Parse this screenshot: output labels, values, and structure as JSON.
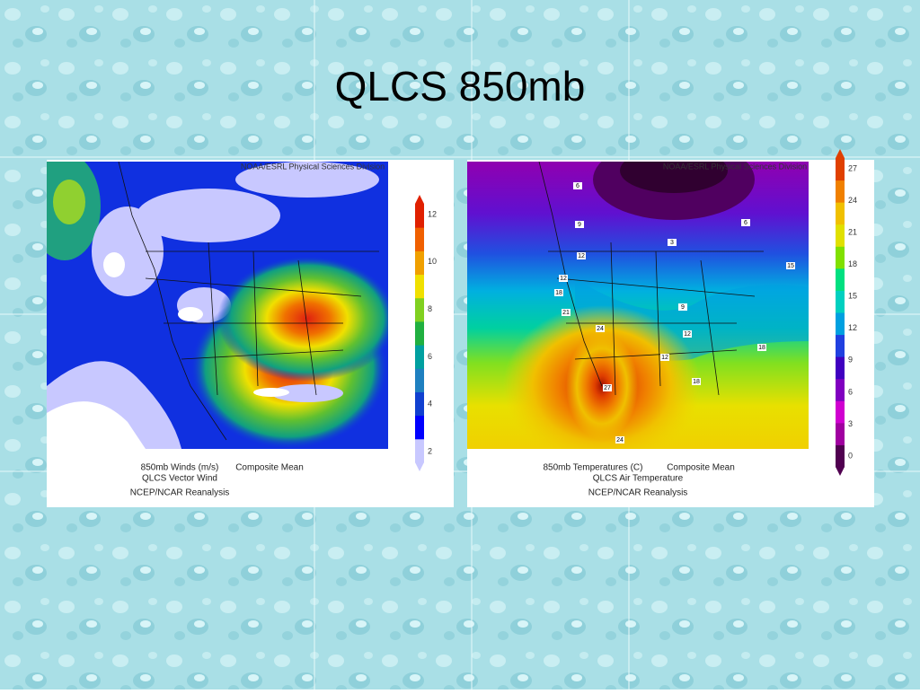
{
  "title": "QLCS 850mb",
  "panels": [
    {
      "credit": "NOAA/ESRL Physical Sciences Division",
      "colorbar_ticks": [
        2,
        4,
        6,
        8,
        10,
        12
      ],
      "caption": [
        "850mb Winds (m/s)",
        "Composite Mean",
        "QLCS Vector Wind",
        "NCEP/NCAR Reanalysis"
      ],
      "contour_labels": []
    },
    {
      "credit": "NOAA/ESRL Physical Sciences Division",
      "colorbar_ticks": [
        0,
        3,
        6,
        9,
        12,
        15,
        18,
        21,
        24,
        27
      ],
      "caption": [
        "850mb Temperatures (C)",
        "Composite Mean",
        "QLCS Air Temperature",
        "NCEP/NCAR Reanalysis"
      ],
      "contour_labels": [
        "6",
        "6",
        "9",
        "3",
        "12",
        "15",
        "12",
        "18",
        "21",
        "9",
        "24",
        "12",
        "18",
        "12",
        "18",
        "27",
        "24"
      ]
    }
  ]
}
